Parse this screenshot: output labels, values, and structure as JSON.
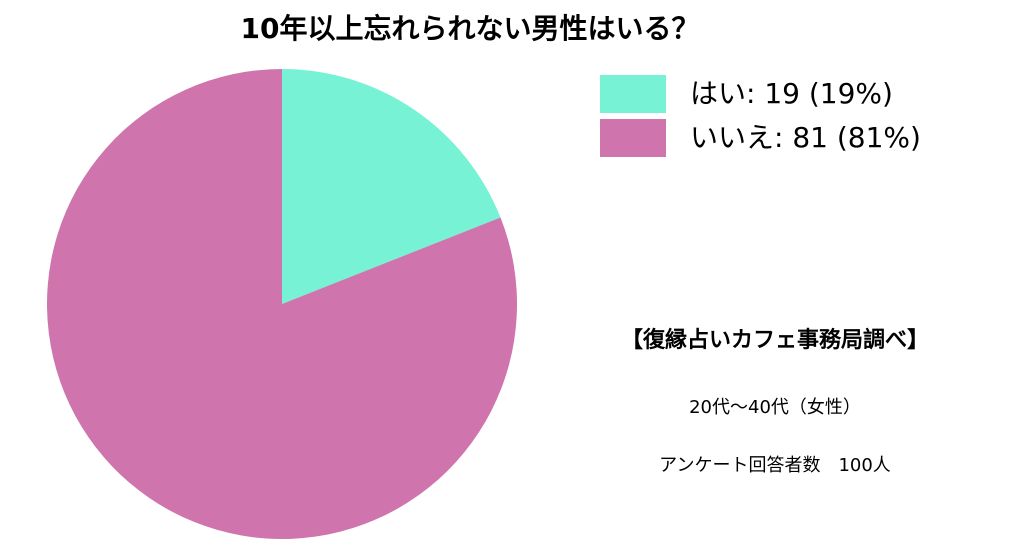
{
  "chart_data": {
    "type": "pie",
    "title": "10年以上忘れられない男性はいる？",
    "categories": [
      "はい: 19 (19%)",
      "いいえ: 81 (81%)"
    ],
    "values": [
      19,
      81
    ],
    "colors": [
      "#77f2d4",
      "#cf74ad"
    ],
    "notes": [
      "【復縁占いカフェ事務局調べ】",
      "20代〜40代（女性）",
      "アンケート回答者数　100人"
    ]
  }
}
